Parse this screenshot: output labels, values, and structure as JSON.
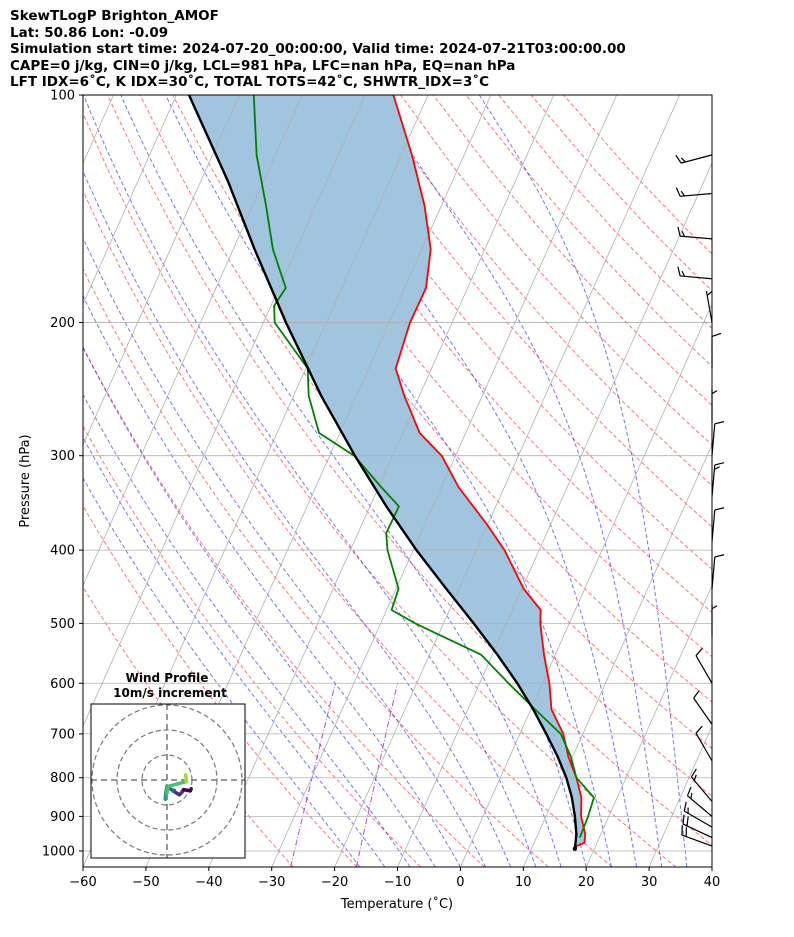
{
  "header": {
    "lines": [
      "SkewTLogP Brighton_AMOF",
      "Lat: 50.86   Lon: -0.09",
      "Simulation start time: 2024-07-20_00:00:00, Valid time: 2024-07-21T03:00:00.00",
      "CAPE=0 j/kg, CIN=0 j/kg, LCL=981 hPa, LFC=nan hPa, EQ=nan hPa",
      "LFT IDX=6˚C, K IDX=30˚C, TOTAL TOTS=42˚C, SHWTR_IDX=3˚C"
    ]
  },
  "chart_data": {
    "type": "line",
    "subtype": "skew-t log-p",
    "xlabel": "Temperature (˚C)",
    "ylabel": "Pressure (hPa)",
    "xlim": [
      -60,
      40
    ],
    "ylim_hpa": [
      1050,
      100
    ],
    "y_scale": "log",
    "x_ticks": [
      "−60",
      "−50",
      "−40",
      "−30",
      "−20",
      "−10",
      "0",
      "10",
      "20",
      "30",
      "40"
    ],
    "y_ticks": [
      "100",
      "200",
      "300",
      "400",
      "500",
      "600",
      "700",
      "800",
      "900",
      "1000"
    ],
    "grid": true,
    "series": [
      {
        "role": "temperature",
        "color": "#ff0000",
        "points": [
          [
            100,
            -65.5
          ],
          [
            120,
            -58.3
          ],
          [
            140,
            -52.7
          ],
          [
            160,
            -48.6
          ],
          [
            180,
            -46.6
          ],
          [
            200,
            -46.7
          ],
          [
            230,
            -45.7
          ],
          [
            250,
            -42.4
          ],
          [
            280,
            -37.3
          ],
          [
            300,
            -32.2
          ],
          [
            330,
            -27.3
          ],
          [
            370,
            -20.1
          ],
          [
            400,
            -15.5
          ],
          [
            450,
            -9.7
          ],
          [
            480,
            -5.5
          ],
          [
            500,
            -4.6
          ],
          [
            550,
            -1.8
          ],
          [
            600,
            1.1
          ],
          [
            650,
            3.3
          ],
          [
            700,
            6.9
          ],
          [
            750,
            9.3
          ],
          [
            800,
            12.1
          ],
          [
            850,
            14.3
          ],
          [
            900,
            15.6
          ],
          [
            950,
            17.5
          ],
          [
            975,
            18.0
          ],
          [
            985,
            17.0
          ],
          [
            993,
            16.9
          ]
        ]
      },
      {
        "role": "dewpoint",
        "color": "#008000",
        "points": [
          [
            100,
            -87.7
          ],
          [
            120,
            -83.0
          ],
          [
            140,
            -77.9
          ],
          [
            160,
            -73.7
          ],
          [
            180,
            -68.9
          ],
          [
            190,
            -69.5
          ],
          [
            200,
            -68.2
          ],
          [
            230,
            -59.7
          ],
          [
            250,
            -57.6
          ],
          [
            280,
            -53.3
          ],
          [
            300,
            -46.1
          ],
          [
            330,
            -39.6
          ],
          [
            350,
            -35.4
          ],
          [
            380,
            -35.5
          ],
          [
            400,
            -34.1
          ],
          [
            450,
            -29.6
          ],
          [
            480,
            -29.2
          ],
          [
            500,
            -24.5
          ],
          [
            550,
            -11.8
          ],
          [
            600,
            -5.4
          ],
          [
            650,
            0.7
          ],
          [
            700,
            6.5
          ],
          [
            750,
            9.7
          ],
          [
            800,
            12.1
          ],
          [
            850,
            16.3
          ],
          [
            900,
            16.7
          ],
          [
            960,
            16.9
          ]
        ]
      },
      {
        "role": "parcel-profile",
        "color": "#000000",
        "points": [
          [
            100,
            -98.0
          ],
          [
            130,
            -85.7
          ],
          [
            160,
            -76.6
          ],
          [
            200,
            -66.4
          ],
          [
            250,
            -55.6
          ],
          [
            300,
            -46.0
          ],
          [
            350,
            -37.4
          ],
          [
            400,
            -29.5
          ],
          [
            450,
            -22.0
          ],
          [
            500,
            -15.2
          ],
          [
            550,
            -9.2
          ],
          [
            600,
            -4.0
          ],
          [
            650,
            0.4
          ],
          [
            700,
            4.2
          ],
          [
            750,
            7.6
          ],
          [
            800,
            10.5
          ],
          [
            850,
            12.8
          ],
          [
            900,
            14.6
          ],
          [
            950,
            16.1
          ],
          [
            993,
            16.9
          ]
        ]
      }
    ],
    "shading": {
      "between": [
        "parcel-profile",
        "temperature"
      ],
      "color": "#a1c4df"
    },
    "wind_barbs": [
      {
        "p": 120,
        "speed_kt": 15,
        "dir": 255
      },
      {
        "p": 135,
        "speed_kt": 15,
        "dir": 265
      },
      {
        "p": 155,
        "speed_kt": 15,
        "dir": 275
      },
      {
        "p": 175,
        "speed_kt": 15,
        "dir": 275
      },
      {
        "p": 200,
        "speed_kt": 5,
        "dir": 350
      },
      {
        "p": 230,
        "speed_kt": 10,
        "dir": 0
      },
      {
        "p": 270,
        "speed_kt": 5,
        "dir": 0
      },
      {
        "p": 300,
        "speed_kt": 10,
        "dir": 5
      },
      {
        "p": 340,
        "speed_kt": 15,
        "dir": 5
      },
      {
        "p": 390,
        "speed_kt": 10,
        "dir": 5
      },
      {
        "p": 450,
        "speed_kt": 10,
        "dir": 5
      },
      {
        "p": 520,
        "speed_kt": 5,
        "dir": 0
      },
      {
        "p": 600,
        "speed_kt": 10,
        "dir": 330
      },
      {
        "p": 680,
        "speed_kt": 10,
        "dir": 325
      },
      {
        "p": 760,
        "speed_kt": 10,
        "dir": 330
      },
      {
        "p": 860,
        "speed_kt": 15,
        "dir": 320
      },
      {
        "p": 900,
        "speed_kt": 15,
        "dir": 310
      },
      {
        "p": 930,
        "speed_kt": 15,
        "dir": 300
      },
      {
        "p": 960,
        "speed_kt": 20,
        "dir": 295
      },
      {
        "p": 985,
        "speed_kt": 20,
        "dir": 290
      }
    ],
    "inset": {
      "title_line1": "Wind Profile",
      "title_line2": "10m/s increment",
      "ring_count": 3,
      "hodograph_color": "viridis"
    }
  }
}
